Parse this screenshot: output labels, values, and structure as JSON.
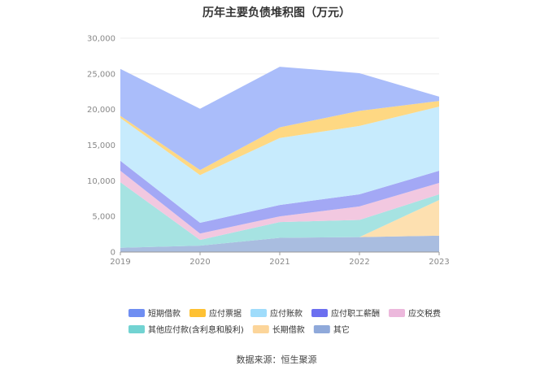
{
  "chart_data": {
    "type": "area",
    "stacked": true,
    "title": "历年主要负债堆积图（万元）",
    "xlabel": "",
    "ylabel": "",
    "x": [
      "2019",
      "2020",
      "2021",
      "2022",
      "2023"
    ],
    "ylim": [
      0,
      30000
    ],
    "yticks": [
      "0",
      "5,000",
      "10,000",
      "15,000",
      "20,000",
      "25,000",
      "30,000"
    ],
    "ytick_values": [
      0,
      5000,
      10000,
      15000,
      20000,
      25000,
      30000
    ],
    "grid": true,
    "legend_position": "bottom",
    "series": [
      {
        "name": "其它",
        "color": "#a9bde0",
        "values": [
          600,
          900,
          2000,
          2100,
          2300
        ]
      },
      {
        "name": "长期借款",
        "color": "#fde0b0",
        "values": [
          0,
          0,
          0,
          0,
          5000
        ]
      },
      {
        "name": "其他应付款(含利息和股利)",
        "color": "#a6e3e2",
        "values": [
          9200,
          800,
          2200,
          2400,
          800
        ]
      },
      {
        "name": "应交税费",
        "color": "#f2c8e0",
        "values": [
          1600,
          900,
          800,
          1900,
          1600
        ]
      },
      {
        "name": "应付职工薪酬",
        "color": "#a3a8f5",
        "values": [
          1400,
          1500,
          1600,
          1700,
          1700
        ]
      },
      {
        "name": "应付账款",
        "color": "#c7ebfd",
        "values": [
          6000,
          6700,
          9400,
          9600,
          9000
        ]
      },
      {
        "name": "应付票据",
        "color": "#fed883",
        "values": [
          300,
          700,
          1500,
          2100,
          800
        ]
      },
      {
        "name": "短期借款",
        "color": "#aabdfa",
        "values": [
          6600,
          8600,
          8500,
          5300,
          600
        ]
      }
    ],
    "legend": [
      {
        "name": "短期借款",
        "color": "#6f8ef2"
      },
      {
        "name": "应付票据",
        "color": "#fec133"
      },
      {
        "name": "应付账款",
        "color": "#9fdcfb"
      },
      {
        "name": "应付职工薪酬",
        "color": "#6c6ff0"
      },
      {
        "name": "应交税费",
        "color": "#ecb8dc"
      },
      {
        "name": "其他应付款(含利息和股利)",
        "color": "#72d3d2"
      },
      {
        "name": "长期借款",
        "color": "#fcd59a"
      },
      {
        "name": "其它",
        "color": "#8fa9da"
      }
    ]
  },
  "footer": {
    "source": "数据来源：恒生聚源"
  }
}
